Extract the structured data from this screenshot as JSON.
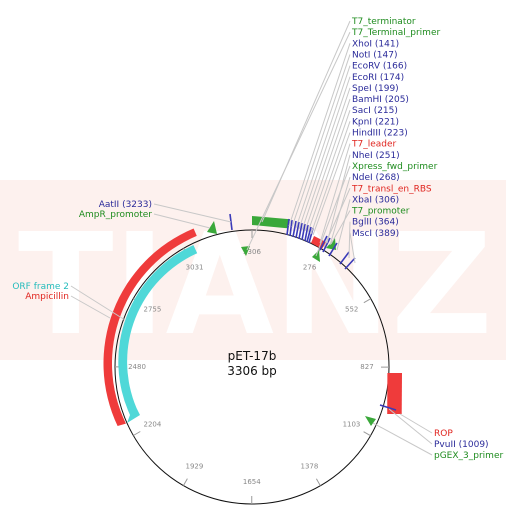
{
  "plasmid": {
    "name": "pET-17b",
    "length": "3306 bp"
  },
  "watermark": "TIANZ",
  "colors": {
    "enzyme": "#2b2b9a",
    "primer": "#1f8c1f",
    "promoter": "#1f8c1f",
    "rbs": "#e0251f",
    "orf": "#26bcbc",
    "gene": "#e0251f",
    "site_line": "#3a3ab8"
  },
  "ticks": [
    {
      "label": "3306",
      "pos": 0
    },
    {
      "label": "276",
      "pos": 276
    },
    {
      "label": "552",
      "pos": 552
    },
    {
      "label": "827",
      "pos": 827
    },
    {
      "label": "1103",
      "pos": 1103
    },
    {
      "label": "1378",
      "pos": 1378
    },
    {
      "label": "1654",
      "pos": 1654
    },
    {
      "label": "1929",
      "pos": 1929
    },
    {
      "label": "2204",
      "pos": 2204
    },
    {
      "label": "2480",
      "pos": 2480
    },
    {
      "label": "2755",
      "pos": 2755
    },
    {
      "label": "3031",
      "pos": 3031
    }
  ],
  "right_top_labels": [
    {
      "text": "T7_terminator",
      "kind": "primer"
    },
    {
      "text": "T7_Terminal_primer",
      "kind": "primer"
    },
    {
      "text": "XhoI (141)",
      "kind": "enzyme"
    },
    {
      "text": "NotI (147)",
      "kind": "enzyme"
    },
    {
      "text": "EcoRV (166)",
      "kind": "enzyme"
    },
    {
      "text": "EcoRI (174)",
      "kind": "enzyme"
    },
    {
      "text": "SpeI (199)",
      "kind": "enzyme"
    },
    {
      "text": "BamHI (205)",
      "kind": "enzyme"
    },
    {
      "text": "SacI (215)",
      "kind": "enzyme"
    },
    {
      "text": "KpnI (221)",
      "kind": "enzyme"
    },
    {
      "text": "HindIII (223)",
      "kind": "enzyme"
    },
    {
      "text": "T7_leader",
      "kind": "rbs"
    },
    {
      "text": "NheI (251)",
      "kind": "enzyme"
    },
    {
      "text": "Xpress_fwd_primer",
      "kind": "primer"
    },
    {
      "text": "NdeI (268)",
      "kind": "enzyme"
    },
    {
      "text": "T7_transl_en_RBS",
      "kind": "rbs"
    },
    {
      "text": "XbaI (306)",
      "kind": "enzyme"
    },
    {
      "text": "T7_promoter",
      "kind": "promoter"
    },
    {
      "text": "BglII (364)",
      "kind": "enzyme"
    },
    {
      "text": "MscI (389)",
      "kind": "enzyme"
    }
  ],
  "left_top_labels": [
    {
      "text": "AatII (3233)",
      "kind": "enzyme"
    },
    {
      "text": "AmpR_promoter",
      "kind": "promoter"
    }
  ],
  "left_mid_labels": [
    {
      "text": "ORF frame 2",
      "kind": "orf"
    },
    {
      "text": "Ampicillin",
      "kind": "gene"
    }
  ],
  "right_bottom_labels": [
    {
      "text": "ROP",
      "kind": "gene"
    },
    {
      "text": "PvuII (1009)",
      "kind": "enzyme"
    },
    {
      "text": "pGEX_3_primer",
      "kind": "primer"
    }
  ]
}
